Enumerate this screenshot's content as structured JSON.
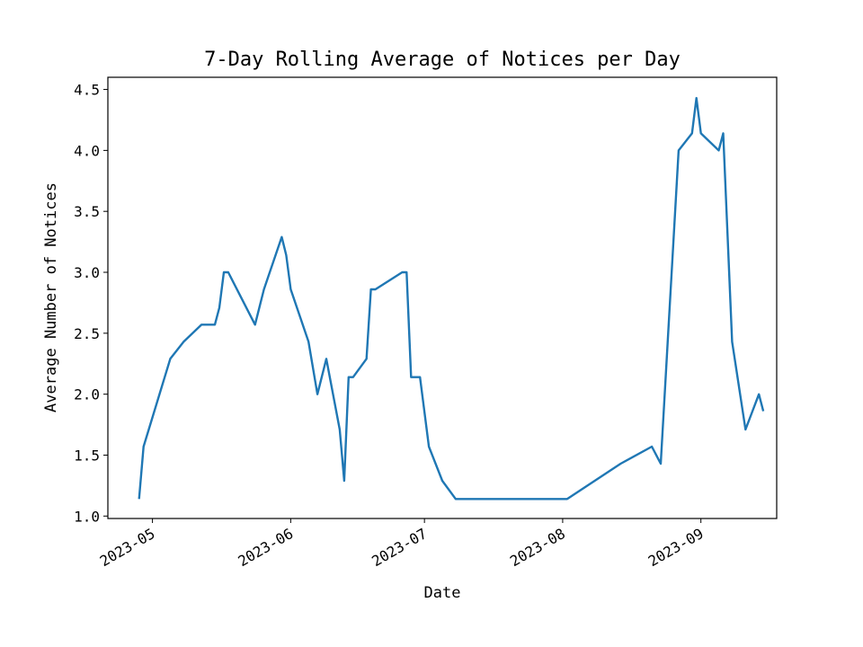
{
  "chart_data": {
    "type": "line",
    "title": "7-Day Rolling Average of Notices per Day",
    "xlabel": "Date",
    "ylabel": "Average Number of Notices",
    "ylim": [
      0.98,
      4.6
    ],
    "xlim": [
      "2023-04-21",
      "2023-09-18"
    ],
    "grid": false,
    "x_ticks": [
      "2023-05-01",
      "2023-06-01",
      "2023-07-01",
      "2023-08-01",
      "2023-09-01"
    ],
    "x_tick_labels": [
      "2023-05",
      "2023-06",
      "2023-07",
      "2023-08",
      "2023-09"
    ],
    "y_ticks": [
      1.0,
      1.5,
      2.0,
      2.5,
      3.0,
      3.5,
      4.0,
      4.5
    ],
    "y_tick_labels": [
      "1.0",
      "1.5",
      "2.0",
      "2.5",
      "3.0",
      "3.5",
      "4.0",
      "4.5"
    ],
    "series": [
      {
        "color": "#1f77b4",
        "x": [
          "2023-04-28",
          "2023-04-29",
          "2023-05-05",
          "2023-05-08",
          "2023-05-12",
          "2023-05-15",
          "2023-05-16",
          "2023-05-17",
          "2023-05-18",
          "2023-05-24",
          "2023-05-26",
          "2023-05-30",
          "2023-05-31",
          "2023-06-01",
          "2023-06-05",
          "2023-06-07",
          "2023-06-09",
          "2023-06-12",
          "2023-06-13",
          "2023-06-14",
          "2023-06-15",
          "2023-06-18",
          "2023-06-19",
          "2023-06-20",
          "2023-06-26",
          "2023-06-27",
          "2023-06-28",
          "2023-06-30",
          "2023-07-02",
          "2023-07-05",
          "2023-07-08",
          "2023-08-02",
          "2023-08-14",
          "2023-08-21",
          "2023-08-23",
          "2023-08-27",
          "2023-08-30",
          "2023-08-31",
          "2023-09-01",
          "2023-09-05",
          "2023-09-06",
          "2023-09-08",
          "2023-09-11",
          "2023-09-14",
          "2023-09-15"
        ],
        "y": [
          1.14,
          1.57,
          2.29,
          2.43,
          2.57,
          2.57,
          2.71,
          3.0,
          3.0,
          2.57,
          2.86,
          3.29,
          3.14,
          2.86,
          2.43,
          2.0,
          2.29,
          1.71,
          1.29,
          2.14,
          2.14,
          2.29,
          2.86,
          2.86,
          3.0,
          3.0,
          2.14,
          2.14,
          1.57,
          1.29,
          1.14,
          1.14,
          1.43,
          1.57,
          1.43,
          4.0,
          4.14,
          4.43,
          4.14,
          4.0,
          4.14,
          2.43,
          1.71,
          2.0,
          1.86
        ]
      }
    ]
  }
}
